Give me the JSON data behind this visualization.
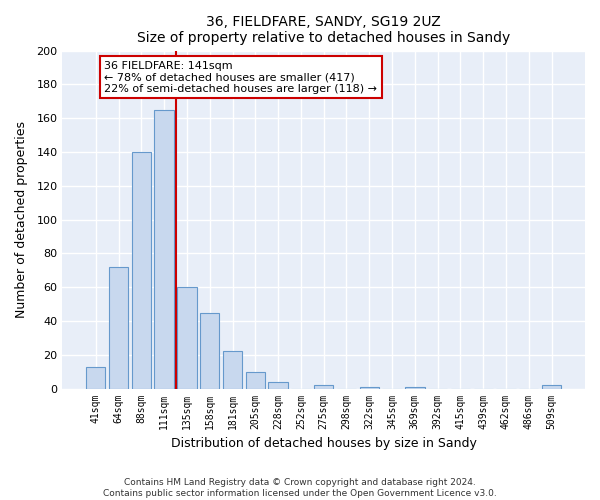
{
  "title": "36, FIELDFARE, SANDY, SG19 2UZ",
  "subtitle": "Size of property relative to detached houses in Sandy",
  "xlabel": "Distribution of detached houses by size in Sandy",
  "ylabel": "Number of detached properties",
  "bin_labels": [
    "41sqm",
    "64sqm",
    "88sqm",
    "111sqm",
    "135sqm",
    "158sqm",
    "181sqm",
    "205sqm",
    "228sqm",
    "252sqm",
    "275sqm",
    "298sqm",
    "322sqm",
    "345sqm",
    "369sqm",
    "392sqm",
    "415sqm",
    "439sqm",
    "462sqm",
    "486sqm",
    "509sqm"
  ],
  "bar_heights": [
    13,
    72,
    140,
    165,
    60,
    45,
    22,
    10,
    4,
    0,
    2,
    0,
    1,
    0,
    1,
    0,
    0,
    0,
    0,
    0,
    2
  ],
  "bar_color": "#c8d8ee",
  "bar_edge_color": "#6699cc",
  "reference_line_color": "#cc0000",
  "annotation_text": "36 FIELDFARE: 141sqm\n← 78% of detached houses are smaller (417)\n22% of semi-detached houses are larger (118) →",
  "annotation_box_facecolor": "#ffffff",
  "annotation_box_edgecolor": "#cc0000",
  "ylim": [
    0,
    200
  ],
  "yticks": [
    0,
    20,
    40,
    60,
    80,
    100,
    120,
    140,
    160,
    180,
    200
  ],
  "footer_text": "Contains HM Land Registry data © Crown copyright and database right 2024.\nContains public sector information licensed under the Open Government Licence v3.0.",
  "bg_color": "#ffffff",
  "plot_bg_color": "#e8eef8",
  "grid_color": "#ffffff"
}
